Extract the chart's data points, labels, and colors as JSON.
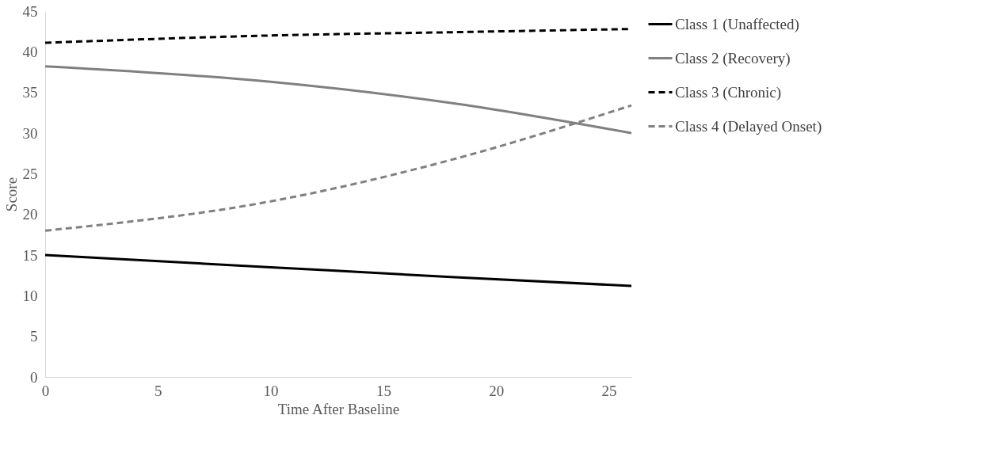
{
  "chart_data": {
    "type": "line",
    "xlabel": "Time After Baseline",
    "ylabel": "Score",
    "x": [
      0,
      10,
      18,
      26
    ],
    "series": [
      {
        "name": "Class 1 (Unaffected)",
        "color": "#000000",
        "line_style": "solid",
        "values": [
          15,
          13.5,
          12.3,
          11.2
        ]
      },
      {
        "name": "Class 2 (Recovery)",
        "color": "#808080",
        "line_style": "solid",
        "values": [
          38.2,
          36.3,
          33.7,
          30
        ]
      },
      {
        "name": "Class 3 (Chronic)",
        "color": "#000000",
        "line_style": "dashed",
        "values": [
          41.1,
          42,
          42.4,
          42.8
        ]
      },
      {
        "name": "Class 4 (Delayed Onset)",
        "color": "#808080",
        "line_style": "dashed",
        "values": [
          18,
          21.6,
          26.7,
          33.4
        ]
      }
    ],
    "xlim": [
      0,
      26
    ],
    "xticks": [
      0,
      5,
      10,
      15,
      20,
      25
    ],
    "ylim": [
      0,
      45
    ],
    "yticks": [
      0,
      5,
      10,
      15,
      20,
      25,
      30,
      35,
      40,
      45
    ],
    "grid": false,
    "legend": "right"
  }
}
